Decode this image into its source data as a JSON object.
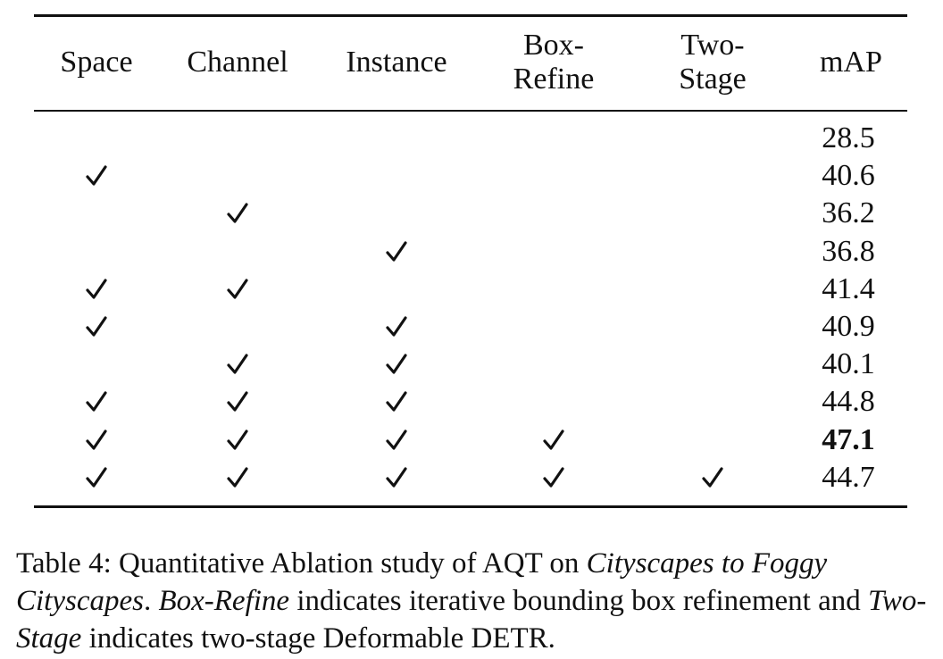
{
  "table": {
    "headers": [
      "Space",
      "Channel",
      "Instance",
      "Box-\nRefine",
      "Two-\nStage",
      "mAP"
    ],
    "rows": [
      {
        "checks": [
          false,
          false,
          false,
          false,
          false
        ],
        "map": "28.5",
        "bold": false
      },
      {
        "checks": [
          true,
          false,
          false,
          false,
          false
        ],
        "map": "40.6",
        "bold": false
      },
      {
        "checks": [
          false,
          true,
          false,
          false,
          false
        ],
        "map": "36.2",
        "bold": false
      },
      {
        "checks": [
          false,
          false,
          true,
          false,
          false
        ],
        "map": "36.8",
        "bold": false
      },
      {
        "checks": [
          true,
          true,
          false,
          false,
          false
        ],
        "map": "41.4",
        "bold": false
      },
      {
        "checks": [
          true,
          false,
          true,
          false,
          false
        ],
        "map": "40.9",
        "bold": false
      },
      {
        "checks": [
          false,
          true,
          true,
          false,
          false
        ],
        "map": "40.1",
        "bold": false
      },
      {
        "checks": [
          true,
          true,
          true,
          false,
          false
        ],
        "map": "44.8",
        "bold": false
      },
      {
        "checks": [
          true,
          true,
          true,
          true,
          false
        ],
        "map": "47.1",
        "bold": true
      },
      {
        "checks": [
          true,
          true,
          true,
          true,
          true
        ],
        "map": "44.7",
        "bold": false
      }
    ]
  },
  "caption": {
    "t1": "Table 4: Quantitative Ablation study of AQT on ",
    "i1": "Cityscapes to Foggy Cityscapes",
    "t2": ". ",
    "i2": "Box-Refine",
    "t3": " indicates iterative bounding box refinement and ",
    "i3": "Two-Stage",
    "t4": " indicates two-stage Deformable DETR."
  }
}
